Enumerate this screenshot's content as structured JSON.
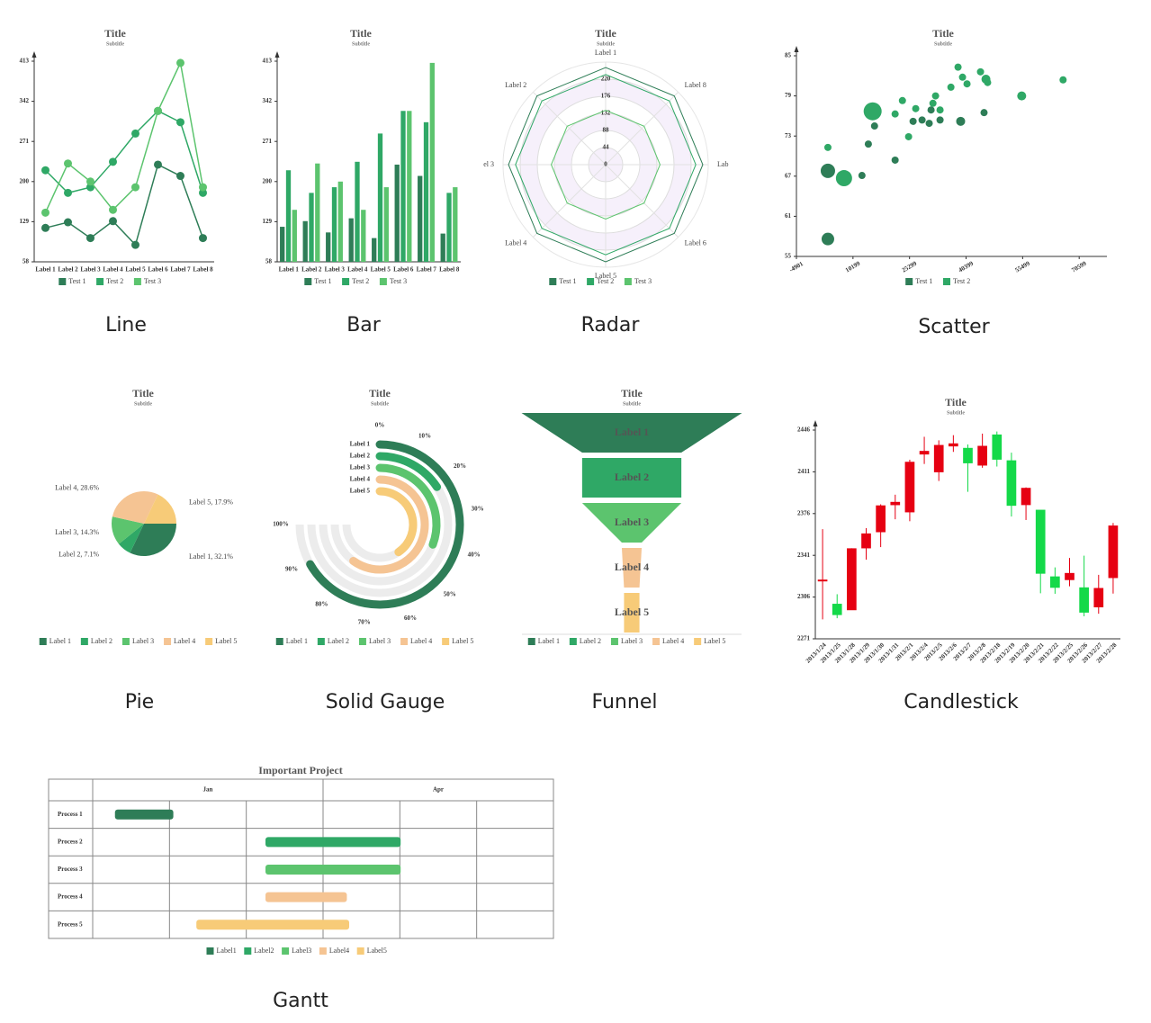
{
  "chart_data": [
    {
      "type": "line",
      "title": "Title",
      "subtitle": "Subtitle",
      "caption": "Line",
      "categories": [
        "Label 1",
        "Label 2",
        "Label 3",
        "Label 4",
        "Label 5",
        "Label 6",
        "Label 7",
        "Label 8"
      ],
      "series": [
        {
          "name": "Test 1",
          "color": "#2e7d57",
          "values": [
            118,
            128,
            100,
            130,
            88,
            230,
            210,
            100
          ]
        },
        {
          "name": "Test 2",
          "color": "#2fa866",
          "values": [
            220,
            180,
            190,
            235,
            285,
            325,
            305,
            180
          ]
        },
        {
          "name": "Test 3",
          "color": "#5cc46e",
          "values": [
            145,
            232,
            200,
            150,
            190,
            325,
            410,
            190
          ]
        }
      ],
      "ylim": [
        58,
        413
      ],
      "yticks": [
        58,
        129,
        200,
        271,
        342,
        413
      ]
    },
    {
      "type": "bar",
      "title": "Title",
      "subtitle": "Subtitle",
      "caption": "Bar",
      "categories": [
        "Label 1",
        "Label 2",
        "Label 3",
        "Label 4",
        "Label 5",
        "Label 6",
        "Label 7",
        "Label 8"
      ],
      "series": [
        {
          "name": "Test 1",
          "color": "#2e7d57",
          "values": [
            120,
            130,
            110,
            135,
            100,
            230,
            210,
            108
          ]
        },
        {
          "name": "Test 2",
          "color": "#2fa866",
          "values": [
            220,
            180,
            190,
            235,
            285,
            325,
            305,
            180
          ]
        },
        {
          "name": "Test 3",
          "color": "#5cc46e",
          "values": [
            150,
            232,
            200,
            150,
            190,
            325,
            410,
            190
          ]
        }
      ],
      "ylim": [
        58,
        413
      ],
      "yticks": [
        58,
        129,
        200,
        271,
        342,
        413
      ]
    },
    {
      "type": "radar",
      "title": "Title",
      "subtitle": "Subtitle",
      "caption": "Radar",
      "categories": [
        "Label 1",
        "Label 2",
        "el 3",
        "Label 4",
        "Label 5",
        "Label 6",
        "Lab",
        "Label 8"
      ],
      "series": [
        {
          "name": "Test 1",
          "color": "#2e7d57",
          "values": [
            250,
            250,
            250,
            250,
            250,
            250,
            250,
            250
          ]
        },
        {
          "name": "Test 2",
          "color": "#2fa866",
          "values": [
            232,
            232,
            232,
            232,
            232,
            232,
            232,
            232
          ]
        },
        {
          "name": "Test 3",
          "color": "#5cc46e",
          "values": [
            140,
            140,
            140,
            140,
            140,
            140,
            140,
            140
          ]
        }
      ],
      "ylim": [
        0,
        264
      ],
      "yticks": [
        0,
        44,
        88,
        132,
        176,
        220
      ]
    },
    {
      "type": "scatter",
      "title": "Title",
      "subtitle": "Subtitle",
      "caption": "Scatter",
      "series": [
        {
          "name": "Test 1",
          "color": "#2e7d57",
          "x": [
            3500,
            3500,
            12600,
            14300,
            15950,
            21450,
            26250,
            28650,
            30550,
            31050,
            33450,
            38950,
            45200
          ],
          "values": [
            57.6,
            67.8,
            67.1,
            71.8,
            74.5,
            69.4,
            75.2,
            75.4,
            74.9,
            76.9,
            75.4,
            75.2,
            76.5
          ],
          "sizes": [
            7,
            8,
            4,
            4,
            4,
            4,
            4,
            4,
            4,
            4,
            4,
            5,
            4
          ]
        },
        {
          "name": "Test 2",
          "color": "#2fa866",
          "x": [
            3500,
            7800,
            15450,
            21450,
            23400,
            25050,
            26950,
            31550,
            32250,
            33450,
            36350,
            38250,
            39450,
            40650,
            44250,
            45700,
            46150,
            55250,
            66300
          ],
          "values": [
            71.3,
            66.7,
            76.7,
            76.3,
            78.3,
            72.9,
            77.1,
            77.9,
            79.0,
            76.9,
            80.3,
            83.3,
            81.8,
            80.8,
            82.6,
            81.5,
            81.0,
            79.0,
            81.4
          ],
          "sizes": [
            4,
            9,
            10,
            4,
            4,
            4,
            4,
            4,
            4,
            4,
            4,
            4,
            4,
            4,
            4,
            5,
            4,
            5,
            4
          ]
        }
      ],
      "xlim": [
        -4901,
        78000
      ],
      "xticks": [
        -4901,
        10199,
        25299,
        40399,
        55499,
        70599
      ],
      "ylim": [
        55,
        85
      ],
      "yticks": [
        55,
        61,
        67,
        73,
        79,
        85
      ]
    },
    {
      "type": "pie",
      "title": "Title",
      "subtitle": "Subtitle",
      "caption": "Pie",
      "categories": [
        "Label 1",
        "Label 2",
        "Label 3",
        "Label 4",
        "Label 5"
      ],
      "values": [
        32.1,
        7.1,
        14.3,
        28.6,
        17.9
      ],
      "value_labels": [
        "Label 1, 32.1%",
        "Label 2, 7.1%",
        "Label 3, 14.3%",
        "Label 4, 28.6%",
        "Label 5, 17.9%"
      ],
      "colors": [
        "#2e7d57",
        "#2fa866",
        "#5cc46e",
        "#f5c493",
        "#f7cb78"
      ]
    },
    {
      "type": "gauge",
      "title": "Title",
      "subtitle": "Subtitle",
      "caption": "Solid Gauge",
      "categories": [
        "Label 1",
        "Label 2",
        "Label 3",
        "Label 4",
        "Label 5"
      ],
      "values": [
        89,
        21,
        41,
        80,
        54
      ],
      "colors": [
        "#2e7d57",
        "#2fa866",
        "#5cc46e",
        "#f5c493",
        "#f7cb78"
      ],
      "ylim": [
        0,
        100
      ],
      "yticks": [
        {
          "value": 0,
          "label": "0%"
        },
        {
          "value": 10,
          "label": "10%"
        },
        {
          "value": 20,
          "label": "20%"
        },
        {
          "value": 30,
          "label": "30%"
        },
        {
          "value": 40,
          "label": "40%"
        },
        {
          "value": 50,
          "label": "50%"
        },
        {
          "value": 60,
          "label": "60%"
        },
        {
          "value": 70,
          "label": "70%"
        },
        {
          "value": 80,
          "label": "80%"
        },
        {
          "value": 90,
          "label": "90%"
        },
        {
          "value": 100,
          "label": "100%"
        }
      ]
    },
    {
      "type": "funnel",
      "title": "Title",
      "subtitle": "Subtitle",
      "caption": "Funnel",
      "categories": [
        "Label 1",
        "Label 2",
        "Label 3",
        "Label 4",
        "Label 5"
      ],
      "values": [
        100,
        45,
        45,
        9,
        7
      ],
      "colors": [
        "#2e7d57",
        "#2fa866",
        "#5cc46e",
        "#f5c493",
        "#f7cb78"
      ]
    },
    {
      "type": "candlestick",
      "title": "Title",
      "subtitle": "Subtitle",
      "caption": "Candlestick",
      "categories": [
        "2013/1/24",
        "2013/1/25",
        "2013/1/28",
        "2013/1/29",
        "2013/1/30",
        "2013/1/31",
        "2013/2/1",
        "2013/2/4",
        "2013/2/5",
        "2013/2/6",
        "2013/2/7",
        "2013/2/8",
        "2013/2/18",
        "2013/2/19",
        "2013/2/20",
        "2013/2/21",
        "2013/2/22",
        "2013/2/25",
        "2013/2/26",
        "2013/2/27",
        "2013/2/28"
      ],
      "open": [
        2320.26,
        2300,
        2295.35,
        2347.22,
        2360.75,
        2383.43,
        2377.41,
        2425.92,
        2411,
        2432.68,
        2430.69,
        2416.62,
        2441.91,
        2420.26,
        2383.49,
        2378.82,
        2322.94,
        2320.62,
        2313.74,
        2297.77,
        2322.32
      ],
      "close": [
        2320.26,
        2291.3,
        2346.5,
        2358.98,
        2382.48,
        2385.42,
        2419.02,
        2428.15,
        2433.13,
        2434.48,
        2418.53,
        2432.4,
        2421.56,
        2382.91,
        2397.18,
        2325.95,
        2314.16,
        2325.82,
        2293.34,
        2313.22,
        2365.59
      ],
      "low": [
        2287.3,
        2288.26,
        2295.35,
        2337.35,
        2347.89,
        2371.23,
        2369.57,
        2417.58,
        2403.3,
        2427.7,
        2394.22,
        2414.4,
        2415.43,
        2373.53,
        2370.61,
        2309.17,
        2308.76,
        2315.01,
        2289.89,
        2292.03,
        2308.92
      ],
      "high": [
        2362.94,
        2308.38,
        2346.92,
        2363.8,
        2383.76,
        2391.82,
        2421.15,
        2440.38,
        2437.42,
        2441.73,
        2433.89,
        2443.03,
        2444.8,
        2427.07,
        2397.94,
        2378.82,
        2330.88,
        2338.78,
        2340.71,
        2324.63,
        2368.12
      ],
      "up_color": "#e60012",
      "down_color": "#14d949",
      "ylim": [
        2271,
        2446
      ],
      "yticks": [
        2271,
        2306,
        2341,
        2376,
        2411,
        2446
      ]
    },
    {
      "type": "gantt",
      "title": "Important Project",
      "caption": "Gantt",
      "groups": [
        {
          "label": "Jan",
          "start": 0,
          "end": 3
        },
        {
          "label": "Apr",
          "start": 3,
          "end": 6
        }
      ],
      "tasks": [
        {
          "name": "Process 1",
          "start": 0.29,
          "end": 1.05
        },
        {
          "name": "Process 2",
          "start": 2.25,
          "end": 4.01
        },
        {
          "name": "Process 3",
          "start": 2.25,
          "end": 4.01
        },
        {
          "name": "Process 4",
          "start": 2.25,
          "end": 3.31
        },
        {
          "name": "Process 5",
          "start": 1.35,
          "end": 3.34
        }
      ],
      "categories": [
        "Label1",
        "Label2",
        "Label3",
        "Label4",
        "Label5"
      ],
      "colors": [
        "#2e7d57",
        "#2fa866",
        "#5cc46e",
        "#f5c493",
        "#f7cb78"
      ],
      "xlim": [
        0,
        6
      ],
      "xticks": [
        0,
        1,
        2,
        3,
        4,
        5,
        6
      ]
    }
  ]
}
